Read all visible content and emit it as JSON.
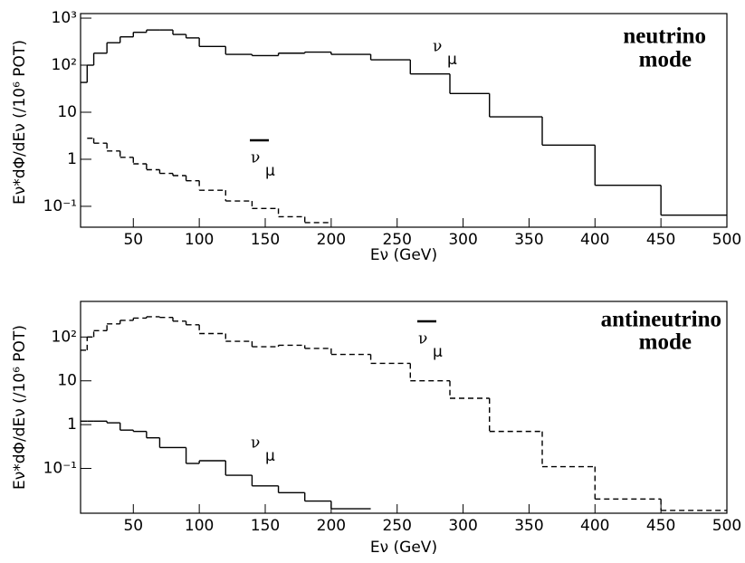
{
  "chart_data": [
    {
      "type": "histogram",
      "ylabel": "Eν*dΦ/dEν (/10⁶ POT)",
      "xlabel": "Eν (GeV)",
      "mode_label": [
        "neutrino",
        "mode"
      ],
      "bins": [
        10,
        15,
        20,
        30,
        40,
        50,
        60,
        70,
        80,
        90,
        100,
        120,
        140,
        160,
        180,
        200,
        230,
        260,
        290,
        320,
        360,
        400,
        450,
        500
      ],
      "series": [
        {
          "color": "#000000",
          "linestyle": "solid",
          "values": [
            43,
            100,
            180,
            300,
            400,
            500,
            560,
            560,
            450,
            380,
            250,
            170,
            160,
            180,
            190,
            170,
            130,
            65,
            25,
            8,
            2,
            0.28,
            0.065
          ]
        },
        {
          "color": "#000000",
          "linestyle": "dashed",
          "values": [
            null,
            2.8,
            2.2,
            1.5,
            1.1,
            0.8,
            0.6,
            0.5,
            0.45,
            0.35,
            0.22,
            0.13,
            0.09,
            0.06,
            0.045,
            null,
            null,
            null,
            null,
            null,
            null,
            null,
            null
          ]
        }
      ],
      "annotations": [
        {
          "text": "ν",
          "subscript": "μ",
          "overline": false
        },
        {
          "text": "ν",
          "subscript": "μ",
          "overline": true
        }
      ],
      "log_y": true,
      "xlim": [
        10,
        500
      ],
      "ylim": [
        0.036,
        1250
      ],
      "xticks": [
        50,
        100,
        150,
        200,
        250,
        300,
        350,
        400,
        450,
        500
      ],
      "yticks": [
        {
          "value": 0.1,
          "label": "10⁻¹"
        },
        1,
        10,
        {
          "value": 100,
          "label": "10²"
        },
        {
          "value": 1000,
          "label": "10³"
        }
      ]
    },
    {
      "type": "histogram",
      "ylabel": "Eν*dΦ/dEν (/10⁶ POT)",
      "xlabel": "Eν (GeV)",
      "mode_label": [
        "antineutrino",
        "mode"
      ],
      "bins": [
        10,
        15,
        20,
        30,
        40,
        50,
        60,
        70,
        80,
        90,
        100,
        120,
        140,
        160,
        180,
        200,
        230,
        260,
        290,
        320,
        360,
        400,
        450,
        500
      ],
      "series": [
        {
          "color": "#000000",
          "linestyle": "dashed",
          "values": [
            50,
            100,
            140,
            200,
            240,
            270,
            290,
            280,
            230,
            190,
            120,
            80,
            60,
            65,
            55,
            40,
            25,
            10,
            4,
            0.7,
            0.11,
            0.02,
            0.011
          ]
        },
        {
          "color": "#000000",
          "linestyle": "solid",
          "values": [
            1.2,
            1.2,
            1.2,
            1.1,
            0.75,
            0.7,
            0.5,
            0.3,
            0.3,
            0.13,
            0.15,
            0.07,
            0.04,
            0.028,
            0.018,
            0.012,
            null,
            null,
            null,
            null,
            null,
            null,
            null
          ]
        }
      ],
      "annotations": [
        {
          "text": "ν",
          "subscript": "μ",
          "overline": true
        },
        {
          "text": "ν",
          "subscript": "μ",
          "overline": false
        }
      ],
      "log_y": true,
      "xlim": [
        10,
        500
      ],
      "ylim": [
        0.0095,
        650
      ],
      "xticks": [
        50,
        100,
        150,
        200,
        250,
        300,
        350,
        400,
        450,
        500
      ],
      "yticks": [
        {
          "value": 0.1,
          "label": "10⁻¹"
        },
        1,
        10,
        {
          "value": 100,
          "label": "10²"
        }
      ]
    }
  ]
}
